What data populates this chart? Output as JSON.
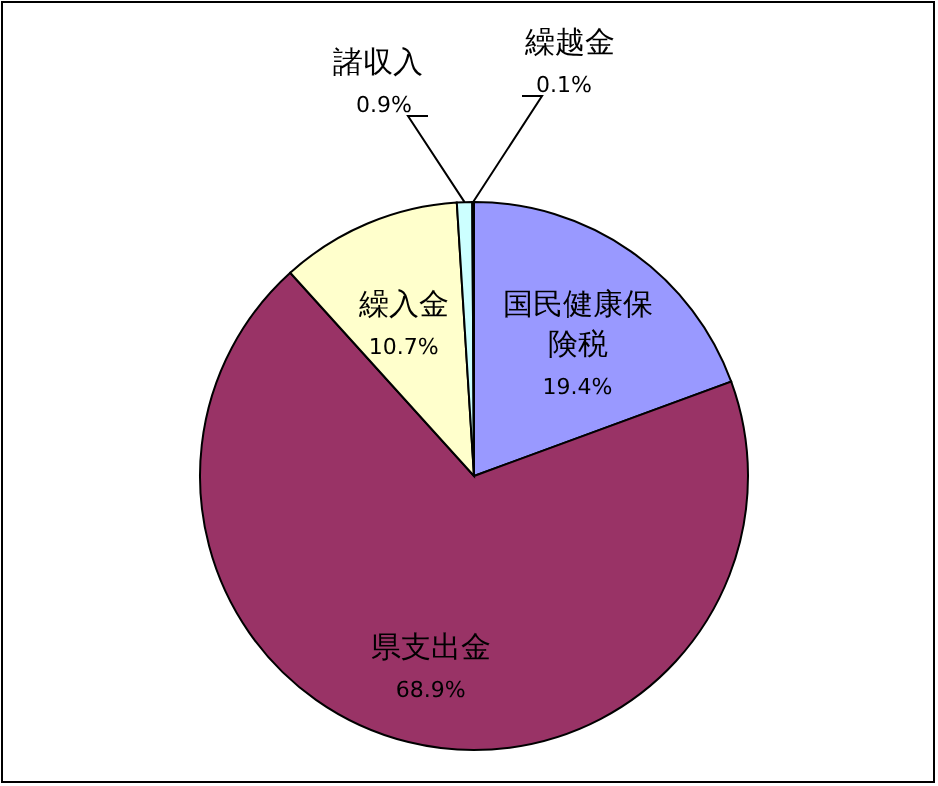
{
  "chart_data": {
    "type": "pie",
    "categories": [
      "国民健康保険税",
      "県支出金",
      "繰入金",
      "諸収入",
      "繰越金"
    ],
    "values": [
      19.4,
      68.9,
      10.7,
      0.9,
      0.1
    ],
    "colors": [
      "#9999ff",
      "#993366",
      "#ffffcc",
      "#ccffff",
      "#ffffff"
    ],
    "value_labels": [
      "19.4%",
      "68.9%",
      "10.7%",
      "0.9%",
      "0.1%"
    ]
  }
}
